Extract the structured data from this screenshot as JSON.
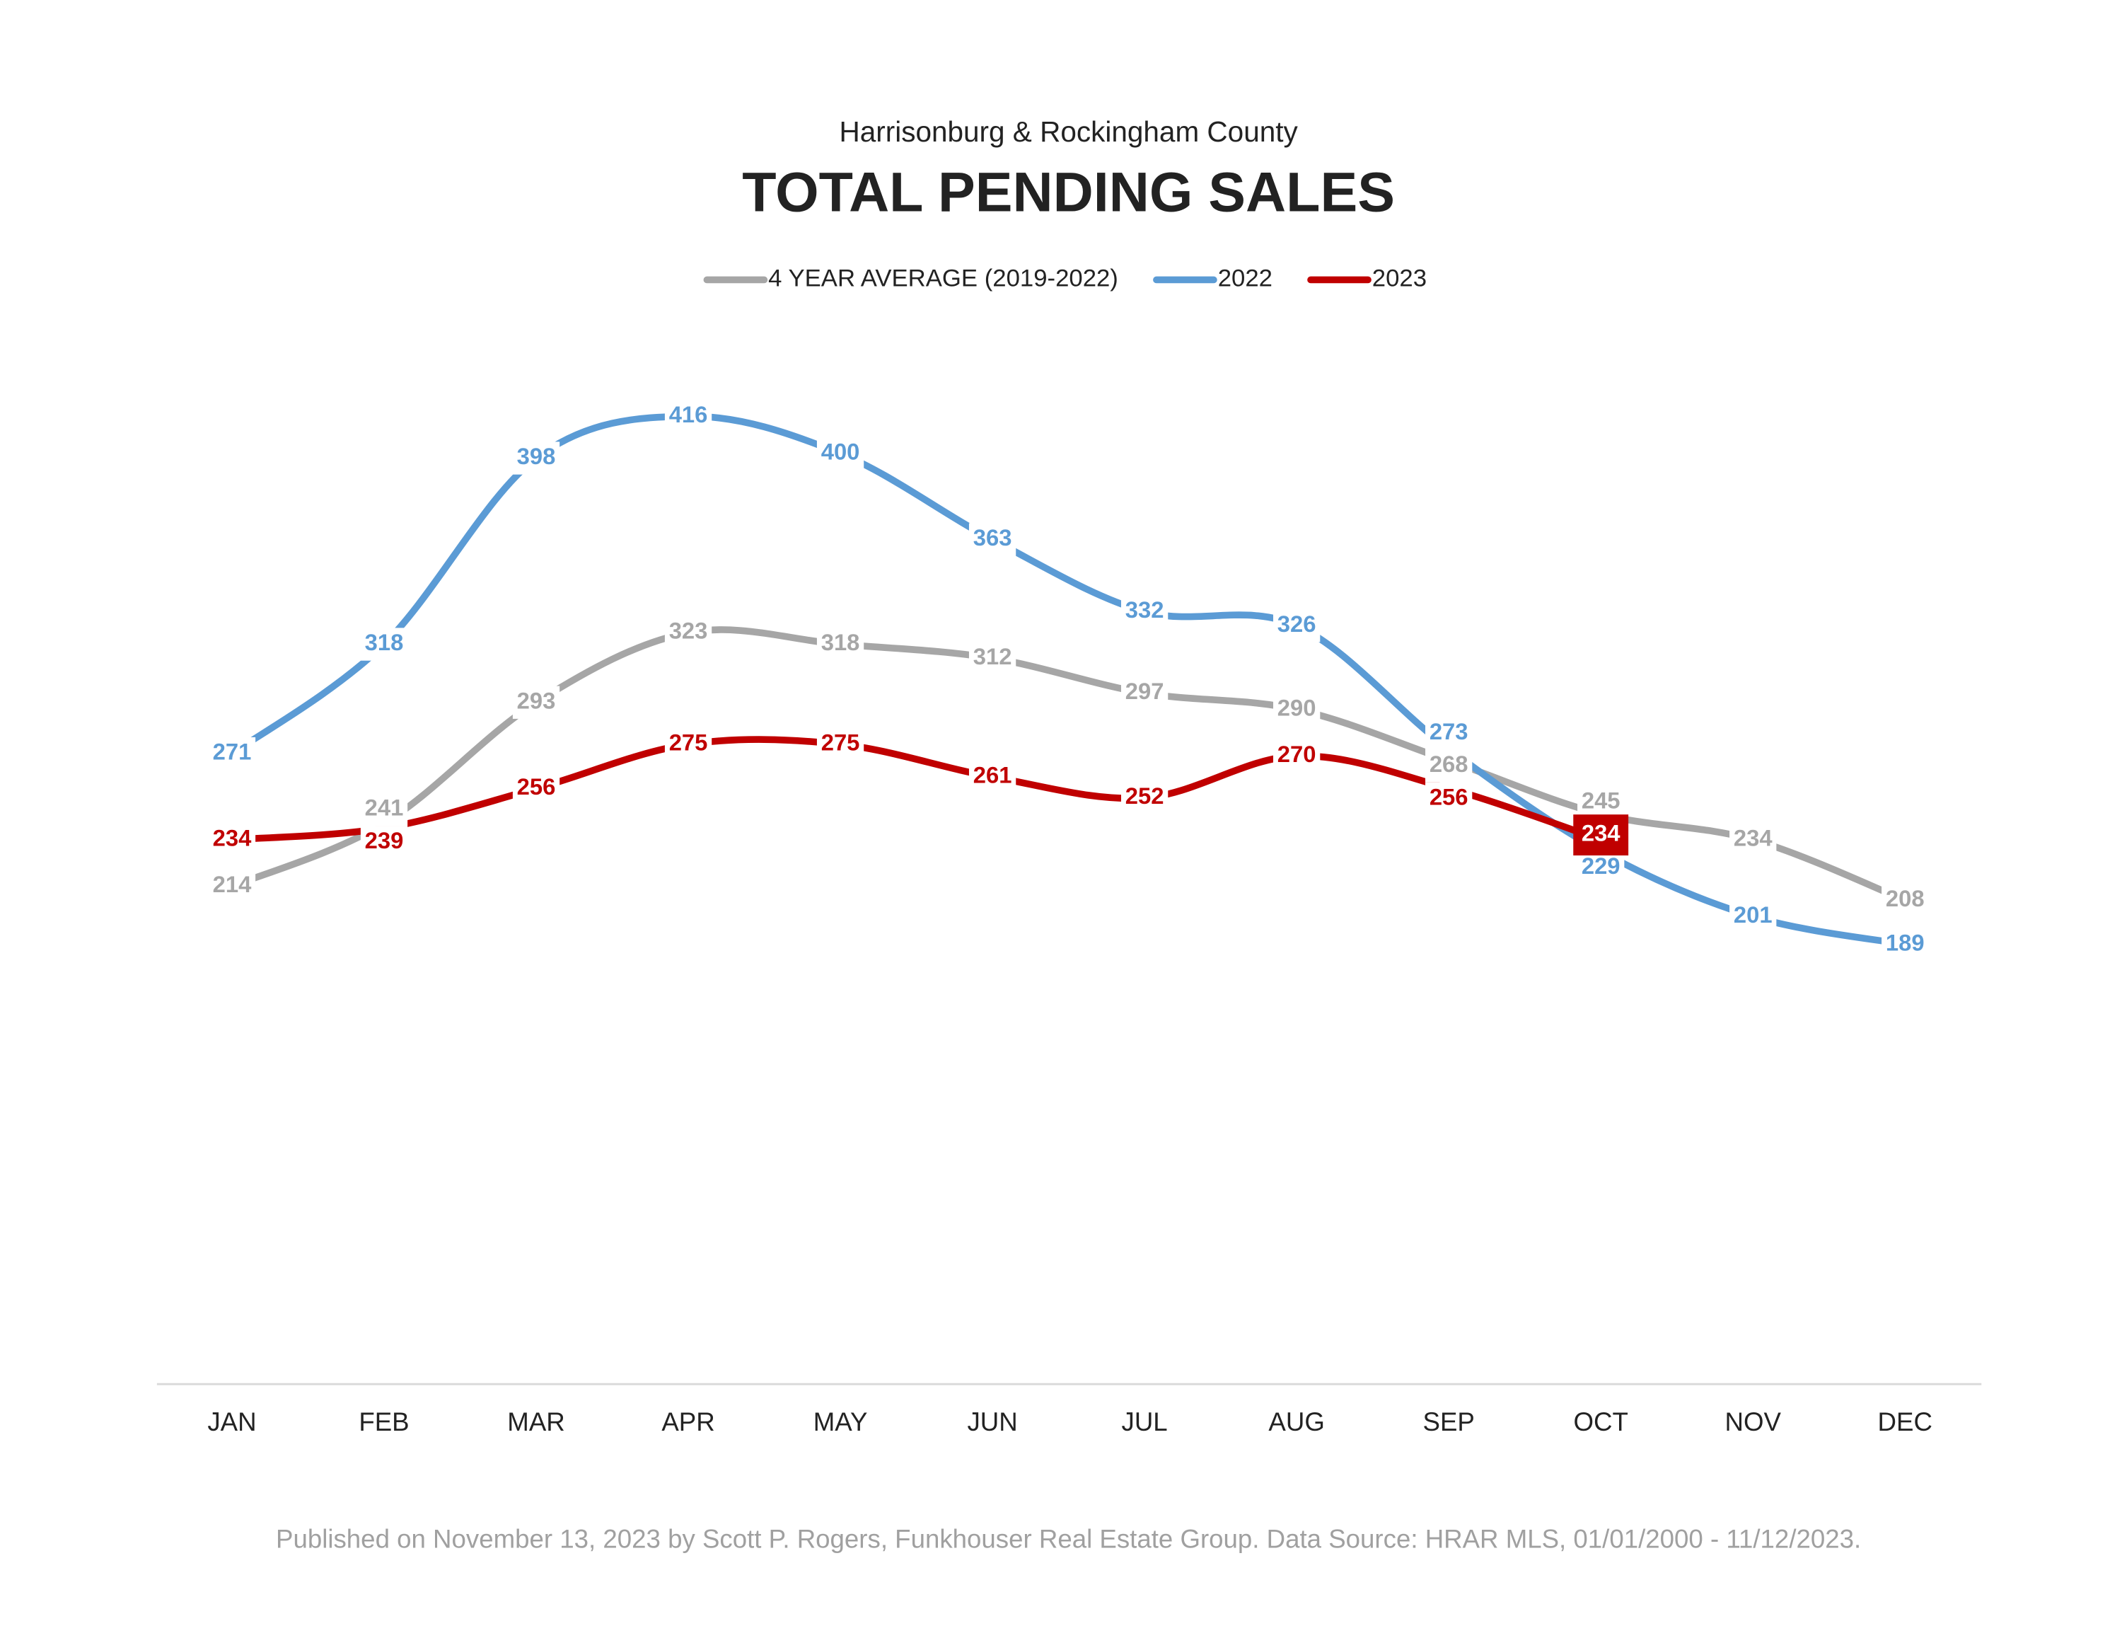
{
  "chart_data": {
    "type": "line",
    "subtitle": "Harrisonburg & Rockingham County",
    "title": "TOTAL PENDING SALES",
    "categories": [
      "JAN",
      "FEB",
      "MAR",
      "APR",
      "MAY",
      "JUN",
      "JUL",
      "AUG",
      "SEP",
      "OCT",
      "NOV",
      "DEC"
    ],
    "series": [
      {
        "name": "4 YEAR AVERAGE (2019-2022)",
        "color": "#a6a6a6",
        "values": [
          214,
          241,
          293,
          323,
          318,
          312,
          297,
          290,
          268,
          245,
          234,
          208
        ]
      },
      {
        "name": "2022",
        "color": "#5b9bd5",
        "values": [
          271,
          318,
          398,
          416,
          400,
          363,
          332,
          326,
          273,
          229,
          201,
          189
        ]
      },
      {
        "name": "2023",
        "color": "#c00000",
        "values": [
          234,
          239,
          256,
          275,
          275,
          261,
          252,
          270,
          256,
          234,
          null,
          null
        ]
      }
    ],
    "ylim": [
      0,
      450
    ],
    "footnote": "Published on November 13, 2023 by Scott P. Rogers, Funkhouser Real Estate Group. Data Source: HRAR MLS, 01/01/2000 - 11/12/2023."
  }
}
